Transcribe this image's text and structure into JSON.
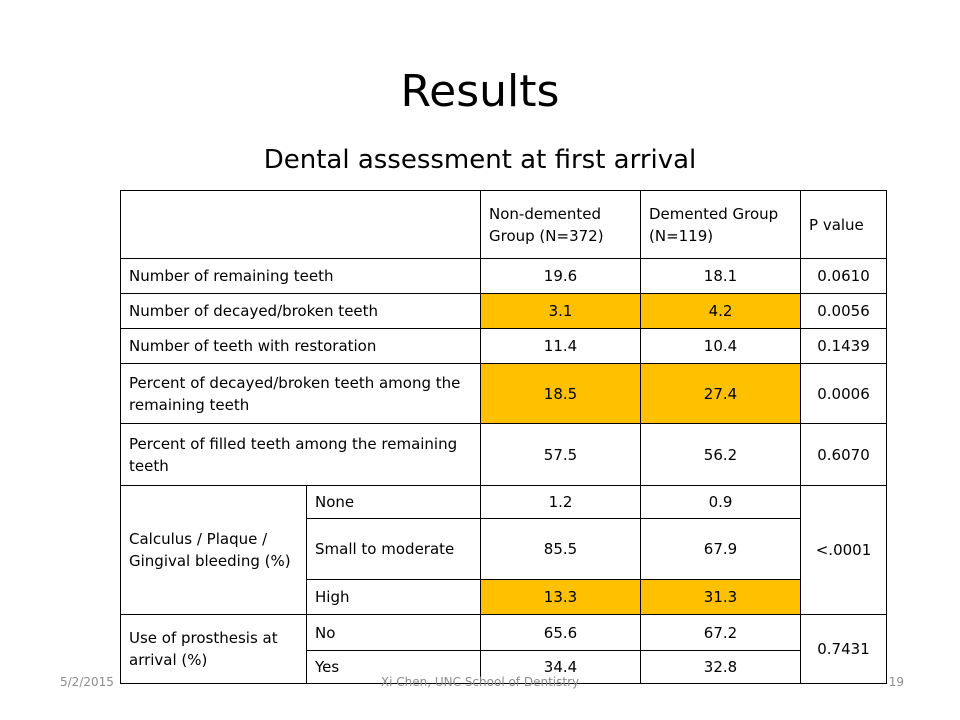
{
  "slide": {
    "title": "Results",
    "subtitle": "Dental assessment at first arrival"
  },
  "table": {
    "header": {
      "col1": "Non-demented Group (N=372)",
      "col2": "Demented Group (N=119)",
      "col3": "P value"
    },
    "rows": [
      {
        "label": "Number of remaining teeth",
        "a": "19.6",
        "b": "18.1",
        "p": "0.0610"
      },
      {
        "label": "Number of decayed/broken teeth",
        "a": "3.1",
        "b": "4.2",
        "p": "0.0056"
      },
      {
        "label": "Number of teeth with restoration",
        "a": "11.4",
        "b": "10.4",
        "p": "0.1439"
      },
      {
        "label": "Percent of decayed/broken teeth among the remaining teeth",
        "a": "18.5",
        "b": "27.4",
        "p": "0.0006"
      },
      {
        "label": "Percent of filled teeth among the remaining teeth",
        "a": "57.5",
        "b": "56.2",
        "p": "0.6070"
      }
    ],
    "calculus": {
      "label": "Calculus / Plaque / Gingival bleeding (%)",
      "p": "<.0001",
      "levels": [
        {
          "label": "None",
          "a": "1.2",
          "b": "0.9"
        },
        {
          "label": "Small to moderate",
          "a": "85.5",
          "b": "67.9"
        },
        {
          "label": "High",
          "a": "13.3",
          "b": "31.3"
        }
      ]
    },
    "prosthesis": {
      "label": "Use of prosthesis at arrival (%)",
      "p": "0.7431",
      "levels": [
        {
          "label": "No",
          "a": "65.6",
          "b": "67.2"
        },
        {
          "label": "Yes",
          "a": "34.4",
          "b": "32.8"
        }
      ]
    },
    "highlight_color": "#ffc000"
  },
  "footer": {
    "date": "5/2/2015",
    "author": "Xi Chen, UNC School of Dentistry",
    "page": "19"
  }
}
